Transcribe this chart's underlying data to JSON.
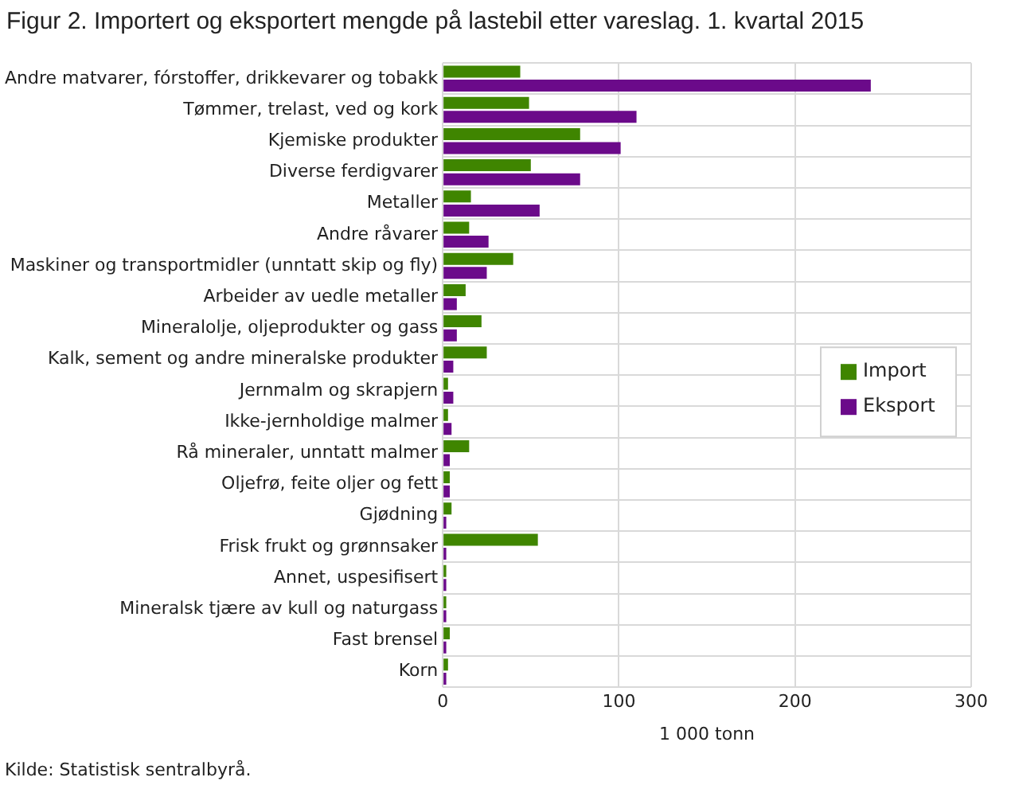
{
  "chart_data": {
    "type": "bar",
    "orientation": "horizontal",
    "title": "Figur 2. Importert og eksportert mengde på lastebil etter vareslag. 1. kvartal 2015",
    "xlabel": "1 000 tonn",
    "categories": [
      "Andre matvarer, fórstoffer, drikkevarer og tobakk",
      "Tømmer, trelast, ved og kork",
      "Kjemiske produkter",
      "Diverse ferdigvarer",
      "Metaller",
      "Andre råvarer",
      "Maskiner og transportmidler (unntatt skip og fly)",
      "Arbeider av uedle metaller",
      "Mineralolje, oljeprodukter og gass",
      "Kalk, sement og andre mineralske produkter",
      "Jernmalm og skrapjern",
      "Ikke-jernholdige malmer",
      "Rå mineraler, unntatt malmer",
      "Oljefrø, feite oljer og fett",
      "Gjødning",
      "Frisk frukt og grønnsaker",
      "Annet, uspesifisert",
      "Mineralsk tjære av kull og naturgass",
      "Fast brensel",
      "Korn"
    ],
    "series": [
      {
        "name": "Import",
        "color": "#3f8500",
        "values": [
          44,
          49,
          78,
          50,
          16,
          15,
          40,
          13,
          22,
          25,
          3,
          3,
          15,
          4,
          5,
          54,
          2,
          2,
          4,
          3
        ]
      },
      {
        "name": "Eksport",
        "color": "#6b0a8a",
        "values": [
          243,
          110,
          101,
          78,
          55,
          26,
          25,
          8,
          8,
          6,
          6,
          5,
          4,
          4,
          2,
          2,
          2,
          2,
          2,
          2
        ]
      }
    ],
    "xlim": [
      0,
      300
    ],
    "xticks": [
      0,
      100,
      200,
      300
    ],
    "grid": true,
    "legend": "right",
    "annotations": [
      "Kilde: Statistisk sentralbyrå."
    ]
  }
}
